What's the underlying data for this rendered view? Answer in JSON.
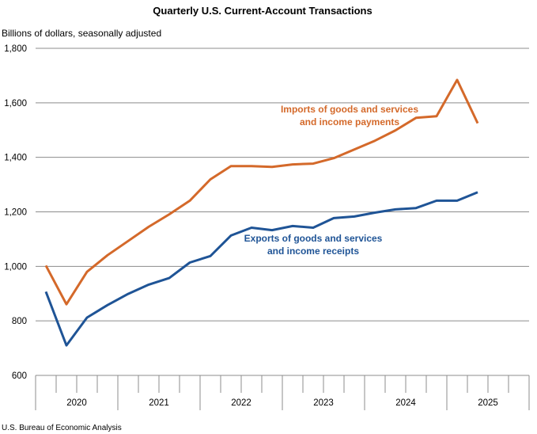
{
  "chart_data": {
    "type": "line",
    "title": "Quarterly U.S. Current-Account Transactions",
    "ylabel": "Billions of dollars, seasonally adjusted",
    "xlabel": "",
    "ylim": [
      600,
      1800
    ],
    "yticks": [
      600,
      800,
      1000,
      1200,
      1400,
      1600,
      1800
    ],
    "ytick_labels": [
      "600",
      "800",
      "1,000",
      "1,200",
      "1,400",
      "1,600",
      "1,800"
    ],
    "grid": true,
    "years": [
      "2020",
      "2021",
      "2022",
      "2023",
      "2024",
      "2025"
    ],
    "x": [
      "2020Q1",
      "2020Q2",
      "2020Q3",
      "2020Q4",
      "2021Q1",
      "2021Q2",
      "2021Q3",
      "2021Q4",
      "2022Q1",
      "2022Q2",
      "2022Q3",
      "2022Q4",
      "2023Q1",
      "2023Q2",
      "2023Q3",
      "2023Q4",
      "2024Q1",
      "2024Q2",
      "2024Q3",
      "2024Q4",
      "2025Q1",
      "2025Q2"
    ],
    "series": [
      {
        "name": "Imports of goods and services and income payments",
        "label_lines": [
          "Imports of goods and services",
          "and income payments"
        ],
        "color": "#D4692A",
        "values": [
          1003,
          861,
          980,
          1041,
          1093,
          1145,
          1191,
          1241,
          1319,
          1368,
          1368,
          1365,
          1374,
          1377,
          1397,
          1429,
          1461,
          1499,
          1545,
          1551,
          1684,
          1525
        ]
      },
      {
        "name": "Exports of goods and services and income receipts",
        "label_lines": [
          "Exports of goods and services",
          "and income receipts"
        ],
        "color": "#1F5496",
        "values": [
          907,
          710,
          812,
          858,
          899,
          933,
          957,
          1014,
          1038,
          1113,
          1142,
          1133,
          1148,
          1142,
          1177,
          1183,
          1197,
          1209,
          1214,
          1241,
          1241,
          1272
        ]
      }
    ],
    "source": "U.S. Bureau of Economic Analysis"
  }
}
